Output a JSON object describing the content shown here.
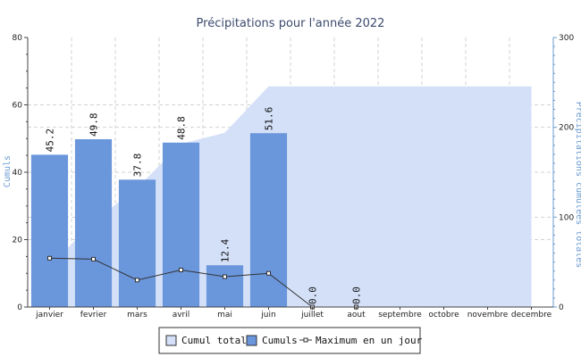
{
  "chart_data": {
    "type": "bar",
    "title": "Précipitations pour l'année 2022",
    "ylabel": "Cumuls",
    "y2label": "Précipitations cumulées totales",
    "ylim": [
      0,
      80
    ],
    "y2lim": [
      0,
      300
    ],
    "yticks": [
      "0",
      "20",
      "40",
      "60",
      "80"
    ],
    "y2ticks": [
      "0",
      "100",
      "200",
      "300"
    ],
    "grid": true,
    "legend_position": "bottom",
    "categories": [
      "janvier",
      "fevrier",
      "mars",
      "avril",
      "mai",
      "juin",
      "juillet",
      "aout",
      "septembre",
      "octobre",
      "novembre",
      "decembre"
    ],
    "series": [
      {
        "name": "Cumul total",
        "type": "area",
        "axis": "right",
        "color": "#d3e0f8",
        "values": [
          45.2,
          95.0,
          132.8,
          181.6,
          194.0,
          245.6,
          245.6,
          245.6,
          245.6,
          245.6,
          245.6,
          245.6
        ]
      },
      {
        "name": "Cumuls",
        "type": "bar",
        "axis": "left",
        "color": "#6a96dc",
        "values": [
          45.2,
          49.8,
          37.8,
          48.8,
          12.4,
          51.6,
          0.0,
          0.0,
          null,
          null,
          null,
          null
        ],
        "labels": [
          "45.2",
          "49.8",
          "37.8",
          "48.8",
          "12.4",
          "51.6",
          "0.0",
          "0.0",
          "",
          "",
          "",
          ""
        ]
      },
      {
        "name": "Maximum en un jour",
        "type": "line",
        "axis": "left",
        "color": "#333333",
        "values": [
          14.5,
          14.2,
          8.0,
          11.0,
          9.0,
          10.0,
          0.0,
          0.0,
          null,
          null,
          null,
          null
        ]
      }
    ]
  }
}
